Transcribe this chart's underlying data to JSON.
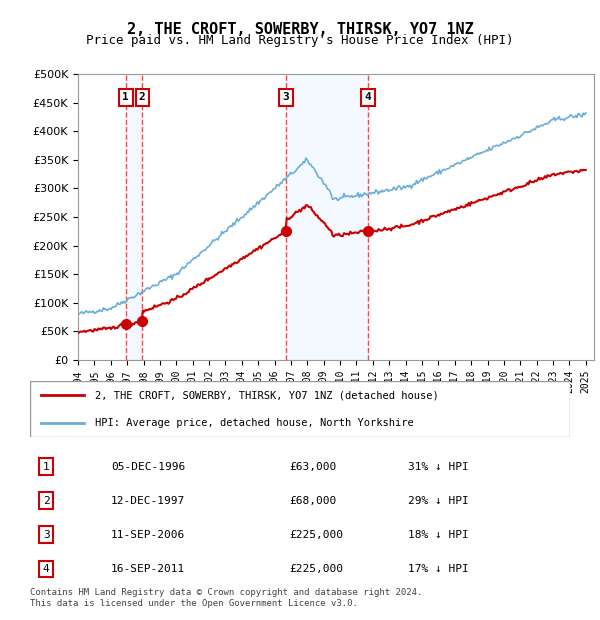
{
  "title": "2, THE CROFT, SOWERBY, THIRSK, YO7 1NZ",
  "subtitle": "Price paid vs. HM Land Registry's House Price Index (HPI)",
  "legend_label_red": "2, THE CROFT, SOWERBY, THIRSK, YO7 1NZ (detached house)",
  "legend_label_blue": "HPI: Average price, detached house, North Yorkshire",
  "footer": "Contains HM Land Registry data © Crown copyright and database right 2024.\nThis data is licensed under the Open Government Licence v3.0.",
  "sales": [
    {
      "num": 1,
      "date": "05-DEC-1996",
      "price": 63000,
      "pct": "31% ↓ HPI",
      "year": 1996.92
    },
    {
      "num": 2,
      "date": "12-DEC-1997",
      "price": 68000,
      "pct": "29% ↓ HPI",
      "year": 1997.92
    },
    {
      "num": 3,
      "date": "11-SEP-2006",
      "price": 225000,
      "pct": "18% ↓ HPI",
      "year": 2006.69
    },
    {
      "num": 4,
      "date": "16-SEP-2011",
      "price": 225000,
      "pct": "17% ↓ HPI",
      "year": 2011.71
    }
  ],
  "ylim": [
    0,
    500000
  ],
  "xlim_start": 1994.0,
  "xlim_end": 2025.5,
  "hpi_color": "#6baed6",
  "price_color": "#cc0000",
  "marker_color": "#cc0000",
  "vline_color": "#ff4444",
  "shade_color": "#ddeeff",
  "hatch_color": "#dddddd",
  "grid_color": "#cccccc",
  "box_color": "#cc0000"
}
